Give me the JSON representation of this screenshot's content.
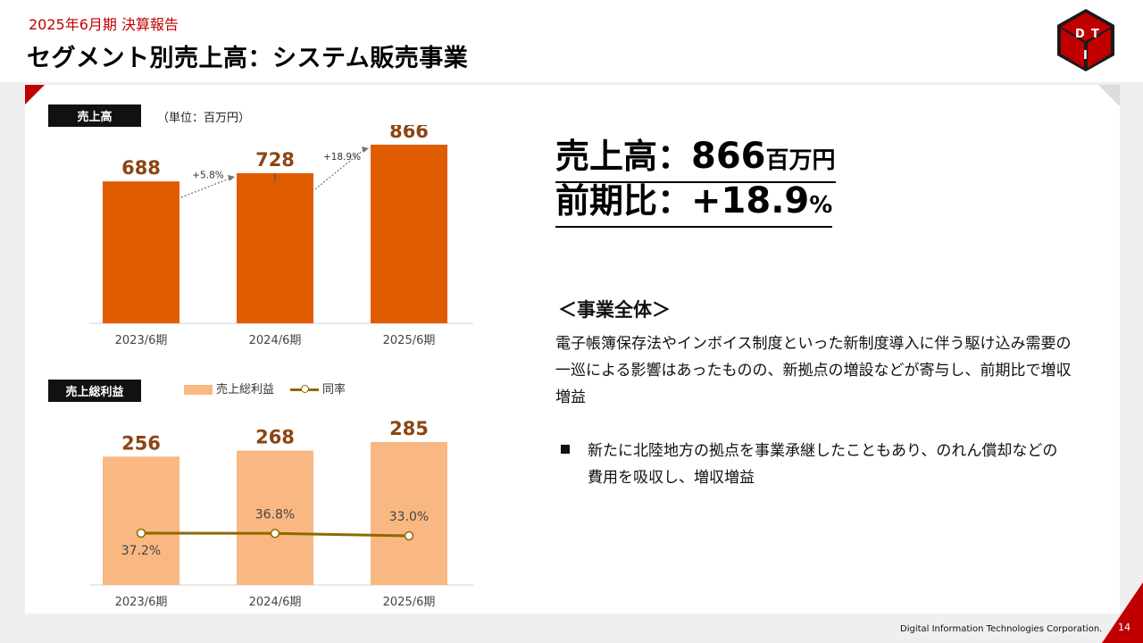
{
  "header": {
    "subtitle": "2025年6月期 決算報告",
    "title": "セグメント別売上高：システム販売事業"
  },
  "sales_chart": {
    "tag": "売上高",
    "unit": "（単位：百万円）",
    "growth_labels": [
      "+5.8%",
      "+18.9%"
    ]
  },
  "profit_chart": {
    "tag": "売上総利益",
    "legend_bar": "売上総利益",
    "legend_line": "同率"
  },
  "chart_data": [
    {
      "type": "bar",
      "title": "売上高",
      "categories": [
        "2023/6期",
        "2024/6期",
        "2025/6期"
      ],
      "values": [
        688,
        728,
        866
      ],
      "growth": [
        "+5.8%",
        "+18.9%"
      ],
      "color": "#e05c00"
    },
    {
      "type": "bar",
      "title": "売上総利益",
      "categories": [
        "2023/6期",
        "2024/6期",
        "2025/6期"
      ],
      "series": [
        {
          "name": "売上総利益",
          "values": [
            256,
            268,
            285
          ],
          "color": "#f9b882"
        },
        {
          "name": "同率",
          "type": "line",
          "values": [
            37.2,
            36.8,
            33.0
          ],
          "labels": [
            "37.2%",
            "36.8%",
            "33.0%"
          ],
          "color": "#8b6b00"
        }
      ]
    }
  ],
  "kpi": {
    "sales_label": "売上高：",
    "sales_value": "866",
    "sales_unit": "百万円",
    "yoy_label": "前期比：",
    "yoy_value": "+18.9",
    "yoy_unit": "%"
  },
  "business": {
    "heading": "＜事業全体＞",
    "text": "電子帳簿保存法やインボイス制度といった新制度導入に伴う駆け込み需要の一巡による影響はあったものの、新拠点の増設などが寄与し、前期比で増収増益",
    "bullet": "新たに北陸地方の拠点を事業承継したこともあり、のれん償却などの費用を吸収し、増収増益"
  },
  "footer": {
    "company": "Digital Information Technologies Corporation.",
    "page": "14"
  },
  "colors": {
    "accent": "#c00000",
    "sales_bar": "#e05c00",
    "profit_bar": "#f9b882",
    "rate_line": "#8b6b00",
    "value_label": "#8b4513"
  }
}
